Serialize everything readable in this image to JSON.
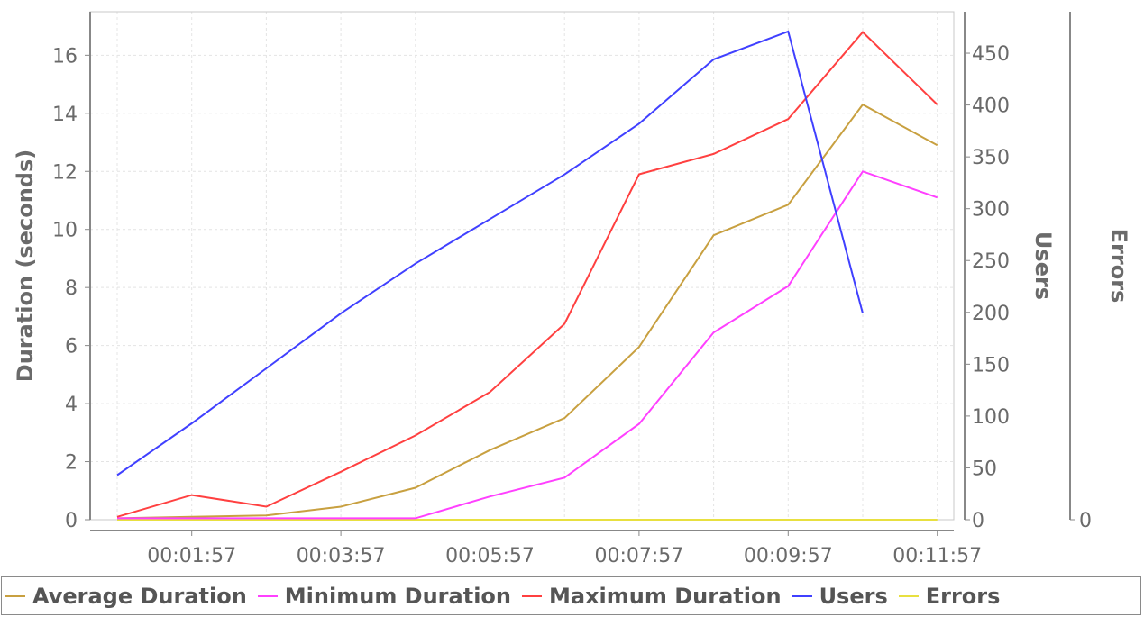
{
  "chart_data": {
    "type": "line",
    "x_labels": [
      "00:01:57",
      "00:03:57",
      "00:05:57",
      "00:07:57",
      "00:09:57",
      "00:11:57"
    ],
    "x": [
      "00:00:57",
      "00:01:57",
      "00:02:57",
      "00:03:57",
      "00:04:57",
      "00:05:57",
      "00:06:57",
      "00:07:57",
      "00:08:57",
      "00:09:57",
      "00:10:57",
      "00:11:57"
    ],
    "ylabel": "Duration (seconds)",
    "ylim": [
      0,
      17.5
    ],
    "yticks": [
      0,
      2,
      4,
      6,
      8,
      10,
      12,
      14,
      16
    ],
    "y2label": "Users",
    "y2lim": [
      0,
      490
    ],
    "y2ticks": [
      0,
      50,
      100,
      150,
      200,
      250,
      300,
      350,
      400,
      450
    ],
    "y3label": "Errors",
    "y3ticks": [
      0
    ],
    "grid": true,
    "legend_position": "bottom",
    "series": [
      {
        "name": "Average Duration",
        "axis": "duration",
        "color": "#c8a040",
        "values": [
          0.05,
          0.1,
          0.15,
          0.45,
          1.1,
          2.4,
          3.5,
          5.95,
          9.8,
          10.85,
          14.3,
          12.9
        ]
      },
      {
        "name": "Minimum Duration",
        "axis": "duration",
        "color": "#ff40ff",
        "values": [
          0.05,
          0.05,
          0.05,
          0.05,
          0.05,
          0.8,
          1.45,
          3.3,
          6.45,
          8.05,
          12.0,
          11.1
        ]
      },
      {
        "name": "Maximum Duration",
        "axis": "duration",
        "color": "#ff4040",
        "values": [
          0.1,
          0.85,
          0.45,
          1.65,
          2.9,
          4.4,
          6.75,
          11.9,
          12.6,
          13.8,
          16.8,
          14.3
        ]
      },
      {
        "name": "Users",
        "axis": "users",
        "color": "#4040ff",
        "x": [
          "00:00:57",
          "00:01:57",
          "00:02:57",
          "00:03:57",
          "00:04:57",
          "00:05:57",
          "00:06:57",
          "00:07:57",
          "00:08:57",
          "00:09:57",
          "00:10:57"
        ],
        "values": [
          43,
          93,
          146,
          199,
          247,
          290,
          333,
          382,
          444,
          471,
          199
        ]
      },
      {
        "name": "Errors",
        "axis": "errors",
        "color": "#e8e040",
        "values": [
          0,
          0,
          0,
          0,
          0,
          0,
          0,
          0,
          0,
          0,
          0,
          0
        ]
      }
    ]
  }
}
